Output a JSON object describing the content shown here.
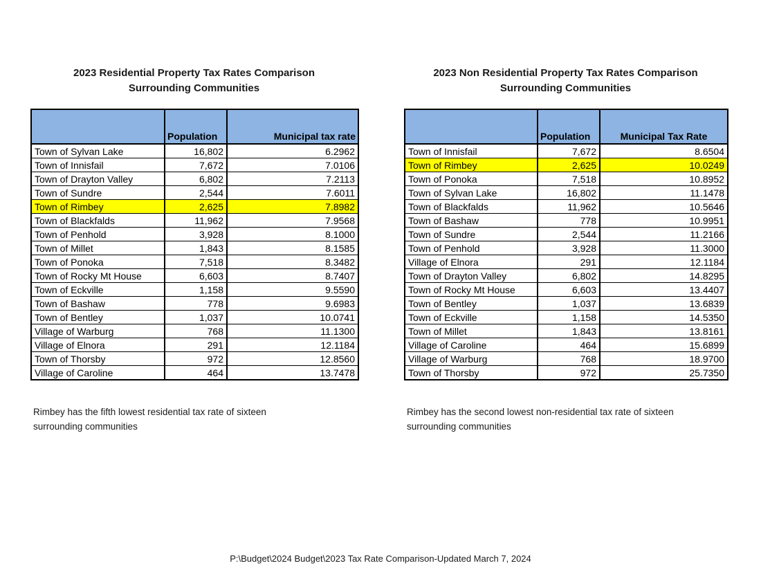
{
  "page": {
    "footer": "P:\\Budget\\2024 Budget\\2023 Tax Rate Comparison-Updated March 7, 2024"
  },
  "colors": {
    "header_blue": "#8DB4E2",
    "highlight_yellow": "#FFFF00"
  },
  "tables": [
    {
      "title_line1": "2023 Residential Property Tax Rates Comparison",
      "title_line2": "Surrounding Communities",
      "col_headers": {
        "name": "",
        "population": "Population",
        "rate": "Municipal tax rate"
      },
      "rows": [
        {
          "name": "Town of Sylvan Lake",
          "population": "16,802",
          "rate": "6.2962",
          "highlight": false
        },
        {
          "name": "Town of Innisfail",
          "population": "7,672",
          "rate": "7.0106",
          "highlight": false
        },
        {
          "name": "Town of Drayton Valley",
          "population": "6,802",
          "rate": "7.2113",
          "highlight": false
        },
        {
          "name": "Town of Sundre",
          "population": "2,544",
          "rate": "7.6011",
          "highlight": false
        },
        {
          "name": "Town of Rimbey",
          "population": "2,625",
          "rate": "7.8982",
          "highlight": true
        },
        {
          "name": "Town of Blackfalds",
          "population": "11,962",
          "rate": "7.9568",
          "highlight": false
        },
        {
          "name": "Town of Penhold",
          "population": "3,928",
          "rate": "8.1000",
          "highlight": false
        },
        {
          "name": "Town of Millet",
          "population": "1,843",
          "rate": "8.1585",
          "highlight": false
        },
        {
          "name": "Town of Ponoka",
          "population": "7,518",
          "rate": "8.3482",
          "highlight": false
        },
        {
          "name": "Town of Rocky Mt House",
          "population": "6,603",
          "rate": "8.7407",
          "highlight": false
        },
        {
          "name": "Town of Eckville",
          "population": "1,158",
          "rate": "9.5590",
          "highlight": false
        },
        {
          "name": "Town of Bashaw",
          "population": "778",
          "rate": "9.6983",
          "highlight": false
        },
        {
          "name": "Town of Bentley",
          "population": "1,037",
          "rate": "10.0741",
          "highlight": false
        },
        {
          "name": "Village of Warburg",
          "population": "768",
          "rate": "11.1300",
          "highlight": false
        },
        {
          "name": "Village of Elnora",
          "population": "291",
          "rate": "12.1184",
          "highlight": false
        },
        {
          "name": "Town of Thorsby",
          "population": "972",
          "rate": "12.8560",
          "highlight": false
        },
        {
          "name": "Village of Caroline",
          "population": "464",
          "rate": "13.7478",
          "highlight": false
        }
      ],
      "note_line1": "Rimbey has the fifth lowest residential tax rate of sixteen",
      "note_line2": "surrounding communities"
    },
    {
      "title_line1": "2023 Non Residential Property Tax Rates Comparison",
      "title_line2": "Surrounding Communities",
      "col_headers": {
        "name": "",
        "population": "Population",
        "rate": "Municipal Tax Rate"
      },
      "rows": [
        {
          "name": "Town of Innisfail",
          "population": "7,672",
          "rate": "8.6504",
          "highlight": false
        },
        {
          "name": "Town of Rimbey",
          "population": "2,625",
          "rate": "10.0249",
          "highlight": true
        },
        {
          "name": "Town of Ponoka",
          "population": "7,518",
          "rate": "10.8952",
          "highlight": false
        },
        {
          "name": "Town of Sylvan Lake",
          "population": "16,802",
          "rate": "11.1478",
          "highlight": false
        },
        {
          "name": "Town of Blackfalds",
          "population": "11,962",
          "rate": "10.5646",
          "highlight": false
        },
        {
          "name": "Town of Bashaw",
          "population": "778",
          "rate": "10.9951",
          "highlight": false
        },
        {
          "name": "Town of Sundre",
          "population": "2,544",
          "rate": "11.2166",
          "highlight": false
        },
        {
          "name": "Town of Penhold",
          "population": "3,928",
          "rate": "11.3000",
          "highlight": false
        },
        {
          "name": "Village of Elnora",
          "population": "291",
          "rate": "12.1184",
          "highlight": false
        },
        {
          "name": "Town of Drayton Valley",
          "population": "6,802",
          "rate": "14.8295",
          "highlight": false
        },
        {
          "name": "Town of Rocky Mt House",
          "population": "6,603",
          "rate": "13.4407",
          "highlight": false
        },
        {
          "name": "Town of Bentley",
          "population": "1,037",
          "rate": "13.6839",
          "highlight": false
        },
        {
          "name": "Town of Eckville",
          "population": "1,158",
          "rate": "14.5350",
          "highlight": false
        },
        {
          "name": "Town of Millet",
          "population": "1,843",
          "rate": "13.8161",
          "highlight": false
        },
        {
          "name": "Village of Caroline",
          "population": "464",
          "rate": "15.6899",
          "highlight": false
        },
        {
          "name": "Village of Warburg",
          "population": "768",
          "rate": "18.9700",
          "highlight": false
        },
        {
          "name": "Town of Thorsby",
          "population": "972",
          "rate": "25.7350",
          "highlight": false
        }
      ],
      "note_line1": "Rimbey has the second lowest non-residential tax rate of sixteen",
      "note_line2": "surrounding communities"
    }
  ]
}
